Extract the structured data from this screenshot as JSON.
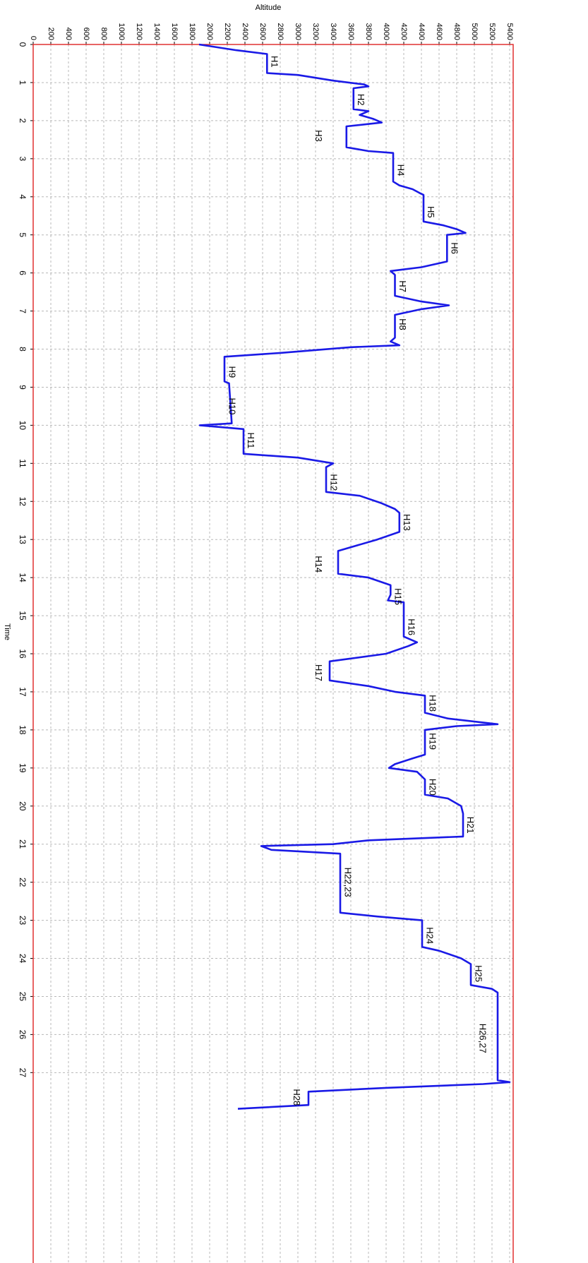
{
  "chart_data": {
    "type": "line",
    "title": "Altitude",
    "xlabel": "Time",
    "x": [
      0,
      0.15,
      0.25,
      0.3,
      0.75,
      0.8,
      0.95,
      1.05,
      1.1,
      1.15,
      1.7,
      1.75,
      1.85,
      1.95,
      2.05,
      2.15,
      2.7,
      2.8,
      2.85,
      3.6,
      3.7,
      3.8,
      3.9,
      3.95,
      4.65,
      4.75,
      4.85,
      4.95,
      5.0,
      5.7,
      5.85,
      5.95,
      6.05,
      6.6,
      6.75,
      6.85,
      6.95,
      7.1,
      7.7,
      7.8,
      7.9,
      7.95,
      8.1,
      8.2,
      8.85,
      8.9,
      9.95,
      10.0,
      10.1,
      10.75,
      10.85,
      11.0,
      11.1,
      11.75,
      11.85,
      12.05,
      12.2,
      12.3,
      12.8,
      13.0,
      13.3,
      13.9,
      14.0,
      14.2,
      14.45,
      14.6,
      14.65,
      15.55,
      15.7,
      15.8,
      16.0,
      16.2,
      16.7,
      16.85,
      17.0,
      17.1,
      17.55,
      17.7,
      17.85,
      17.9,
      18.0,
      18.65,
      18.75,
      18.9,
      19.0,
      19.1,
      19.3,
      19.7,
      19.8,
      20.0,
      20.2,
      20.8,
      20.9,
      21.0,
      21.05,
      21.15,
      21.25,
      22.8,
      22.9,
      23.0,
      23.7,
      23.8,
      24.0,
      24.15,
      24.7,
      24.8,
      24.9,
      27.2,
      27.25,
      27.3,
      27.4,
      27.5,
      27.85,
      27.95
    ],
    "series": [
      {
        "color": "#1a1ae6",
        "values": [
          1880,
          2300,
          2650,
          2650,
          2650,
          3000,
          3400,
          3750,
          3800,
          3630,
          3630,
          3800,
          3700,
          3850,
          3950,
          3550,
          3550,
          3800,
          4080,
          4080,
          4150,
          4300,
          4380,
          4424,
          4424,
          4650,
          4800,
          4900,
          4690,
          4690,
          4400,
          4050,
          4100,
          4100,
          4400,
          4712,
          4400,
          4100,
          4100,
          4050,
          4150,
          3600,
          2800,
          2168,
          2168,
          2220,
          2250,
          1888,
          2384,
          2384,
          3000,
          3400,
          3320,
          3320,
          3700,
          3950,
          4100,
          4150,
          4150,
          3900,
          3456,
          3456,
          3800,
          4050,
          4050,
          4020,
          4200,
          4200,
          4350,
          4250,
          4000,
          3360,
          3360,
          3800,
          4100,
          4440,
          4440,
          4700,
          5264,
          4800,
          4440,
          4440,
          4300,
          4100,
          4032,
          4350,
          4440,
          4440,
          4700,
          4850,
          4872,
          4872,
          3800,
          3400,
          2584,
          2700,
          3480,
          3480,
          3900,
          4408,
          4408,
          4600,
          4850,
          4960,
          4960,
          5200,
          5264,
          5264,
          5400,
          5100,
          4000,
          3120,
          3120,
          2320
        ]
      }
    ],
    "annotations": [
      {
        "text": "H1",
        "x": 0.45,
        "y": 2700
      },
      {
        "text": "H2",
        "x": 1.45,
        "y": 3680
      },
      {
        "text": "H3",
        "x": 2.4,
        "y": 3200
      },
      {
        "text": "H4",
        "x": 3.3,
        "y": 4130
      },
      {
        "text": "H5",
        "x": 4.4,
        "y": 4470
      },
      {
        "text": "H6",
        "x": 5.35,
        "y": 4740
      },
      {
        "text": "H7",
        "x": 6.35,
        "y": 4150
      },
      {
        "text": "H8",
        "x": 7.35,
        "y": 4150
      },
      {
        "text": "H9",
        "x": 8.6,
        "y": 2220
      },
      {
        "text": "H10",
        "x": 9.5,
        "y": 2220
      },
      {
        "text": "H11",
        "x": 10.4,
        "y": 2430
      },
      {
        "text": "H12",
        "x": 11.5,
        "y": 3370
      },
      {
        "text": "H13",
        "x": 12.55,
        "y": 4200
      },
      {
        "text": "H14",
        "x": 13.65,
        "y": 3200
      },
      {
        "text": "H15",
        "x": 14.5,
        "y": 4100
      },
      {
        "text": "H16",
        "x": 15.3,
        "y": 4250
      },
      {
        "text": "H17",
        "x": 16.5,
        "y": 3200
      },
      {
        "text": "H18",
        "x": 17.3,
        "y": 4490
      },
      {
        "text": "H19",
        "x": 18.3,
        "y": 4490
      },
      {
        "text": "H20",
        "x": 19.5,
        "y": 4490
      },
      {
        "text": "H21",
        "x": 20.5,
        "y": 4920
      },
      {
        "text": "H22,23",
        "x": 22.0,
        "y": 3530
      },
      {
        "text": "H24",
        "x": 23.4,
        "y": 4460
      },
      {
        "text": "H25",
        "x": 24.4,
        "y": 5010
      },
      {
        "text": "H26,27",
        "x": 26.1,
        "y": 5060
      },
      {
        "text": "H28",
        "x": 27.65,
        "y": 2950
      }
    ],
    "xlim": [
      0,
      32
    ],
    "xticks": [
      0,
      1,
      2,
      3,
      4,
      5,
      6,
      7,
      8,
      9,
      10,
      11,
      12,
      13,
      14,
      15,
      16,
      17,
      18,
      19,
      20,
      21,
      22,
      23,
      24,
      25,
      26,
      27
    ],
    "ylim": [
      0,
      5440
    ],
    "yticks": [
      0,
      200,
      400,
      600,
      800,
      1000,
      1200,
      1400,
      1600,
      1800,
      2000,
      2200,
      2400,
      2600,
      2800,
      3000,
      3200,
      3400,
      3600,
      3800,
      4000,
      4200,
      4400,
      4600,
      4800,
      5000,
      5200,
      5400
    ],
    "grid": true,
    "frame_color": "#e03030"
  }
}
